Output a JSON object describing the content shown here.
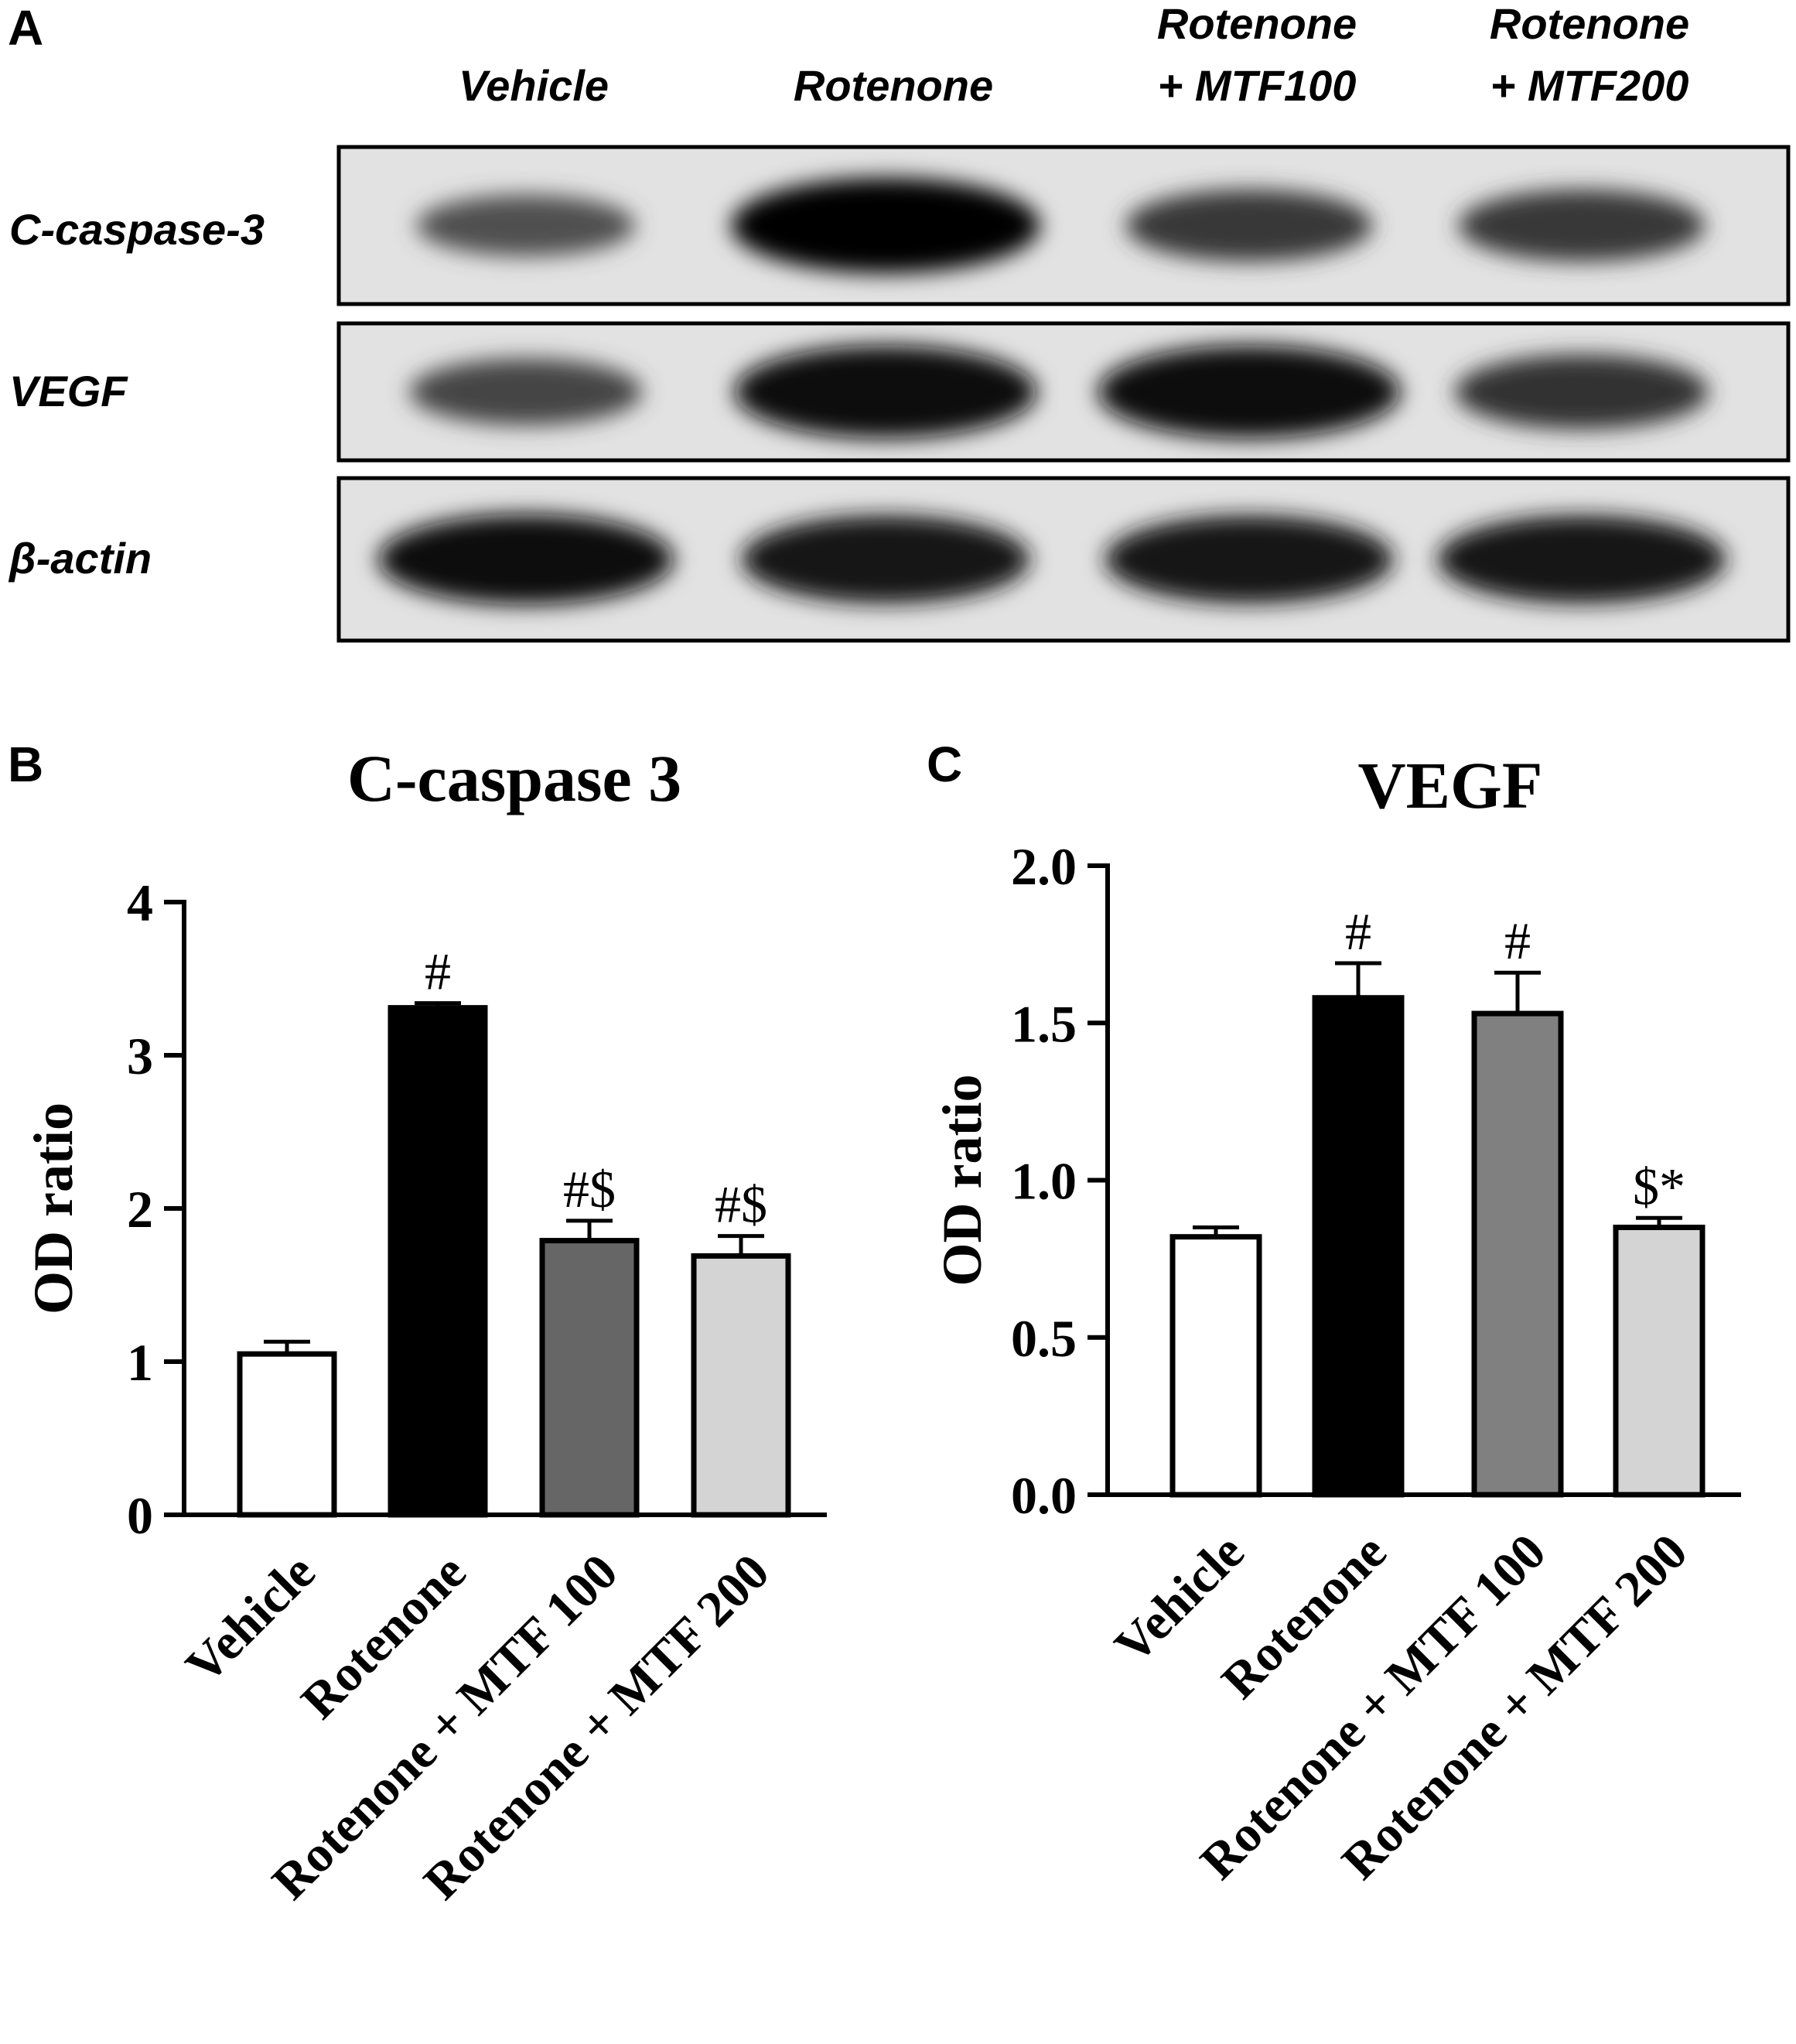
{
  "panel_a": {
    "label": "A",
    "lanes": [
      "Vehicle",
      "Rotenone",
      "Rotenone|+ MTF100",
      "Rotenone|+ MTF200"
    ],
    "rows": [
      {
        "label": "C-caspase-3",
        "bands": [
          0.35,
          1.0,
          0.55,
          0.55
        ]
      },
      {
        "label": "VEGF",
        "bands": [
          0.45,
          0.95,
          0.95,
          0.6
        ]
      },
      {
        "label": "β-actin",
        "bands": [
          0.9,
          0.85,
          0.85,
          0.85
        ]
      }
    ]
  },
  "chart_data": [
    {
      "type": "bar",
      "panel": "B",
      "title": "C-caspase 3",
      "ylabel": "OD ratio",
      "xlabel": "",
      "ylim": [
        0,
        4
      ],
      "yticks": [
        "0",
        "1",
        "2",
        "3",
        "4"
      ],
      "categories": [
        "Vehicle",
        "Rotenone",
        "Rotenone + MTF 100",
        "Rotenone + MTF 200"
      ],
      "values": [
        1.05,
        3.31,
        1.79,
        1.69
      ],
      "errors": [
        0.08,
        0.03,
        0.13,
        0.13
      ],
      "annotations": [
        "",
        "#",
        "#$",
        "#$"
      ],
      "colors": [
        "#ffffff",
        "#000000",
        "#666666",
        "#d4d4d4"
      ]
    },
    {
      "type": "bar",
      "panel": "C",
      "title": "VEGF",
      "ylabel": "OD ratio",
      "xlabel": "",
      "ylim": [
        0,
        2.0
      ],
      "yticks": [
        "0.0",
        "0.5",
        "1.0",
        "1.5",
        "2.0"
      ],
      "categories": [
        "Vehicle",
        "Rotenone",
        "Rotenone + MTF 100",
        "Rotenone + MTF 200"
      ],
      "values": [
        0.82,
        1.58,
        1.53,
        0.85
      ],
      "errors": [
        0.03,
        0.11,
        0.13,
        0.03
      ],
      "annotations": [
        "",
        "#",
        "#",
        "$*"
      ],
      "colors": [
        "#ffffff",
        "#000000",
        "#808080",
        "#d4d4d4"
      ]
    }
  ]
}
